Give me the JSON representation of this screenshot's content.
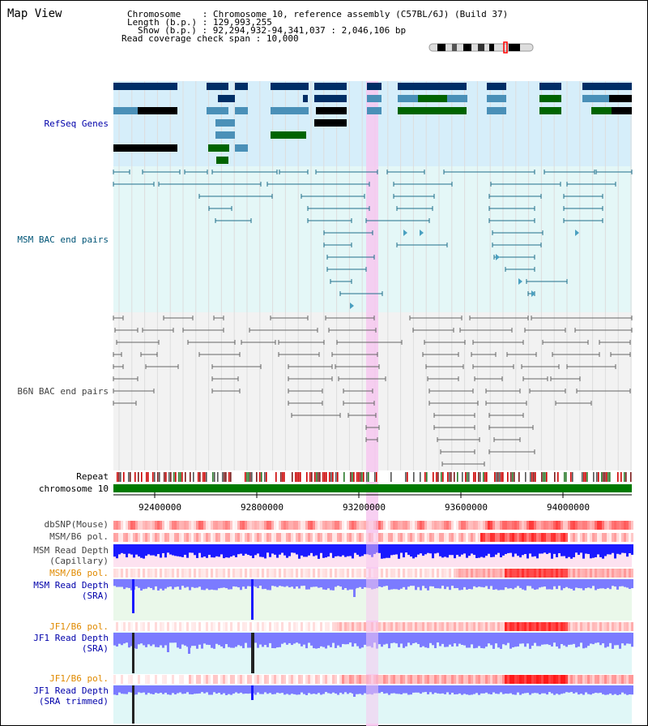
{
  "title": "Map View",
  "info": {
    "chromosome_label": "Chromosome",
    "chromosome_value": "Chromosome 10, reference assembly (C57BL/6J) (Build 37)",
    "length_label": "Length (b.p.)",
    "length_value": "129,993,255",
    "show_label": "Show (b.p.)",
    "show_value": "92,294,932-94,341,037 : 2,046,106 bp",
    "coverage_label": "Read coverage check span",
    "coverage_value": "10,000"
  },
  "tracks": {
    "refseq": "RefSeq Genes",
    "msm_bac": "MSM BAC end pairs",
    "b6n_bac": "B6N BAC end pairs",
    "repeat": "Repeat",
    "chromosome": "chromosome 10",
    "dbsnp": "dbSNP(Mouse)",
    "msm_b6_pol": "MSM/B6 pol.",
    "msm_depth_cap_1": "MSM Read Depth",
    "msm_depth_cap_2": "(Capillary)",
    "msm_b6_pol2": "MSM/B6 pol.",
    "msm_depth_sra_1": "MSM Read Depth",
    "msm_depth_sra_2": "(SRA)",
    "jf1_b6_pol": "JF1/B6 pol.",
    "jf1_depth_sra_1": "JF1 Read Depth",
    "jf1_depth_sra_2": "(SRA)",
    "jf1_b6_pol2": "JF1/B6 pol.",
    "jf1_depth_trim_1": "JF1 Read Depth",
    "jf1_depth_trim_2": "(SRA trimmed)"
  },
  "axis": {
    "ticks": [
      "92400000",
      "92800000",
      "93200000",
      "93600000",
      "94000000"
    ]
  },
  "colors": {
    "refseq_bg": "#d6eefa",
    "msm_bg": "#e4f7f7",
    "gray_bg": "#f2f2f2",
    "highlight": "#f7c8f0",
    "gene_dark": "#002e66",
    "gene_mid": "#4a90b8",
    "gene_green": "#006400",
    "msm_line": "#1f6f8b",
    "b6n_line": "#666666"
  }
}
